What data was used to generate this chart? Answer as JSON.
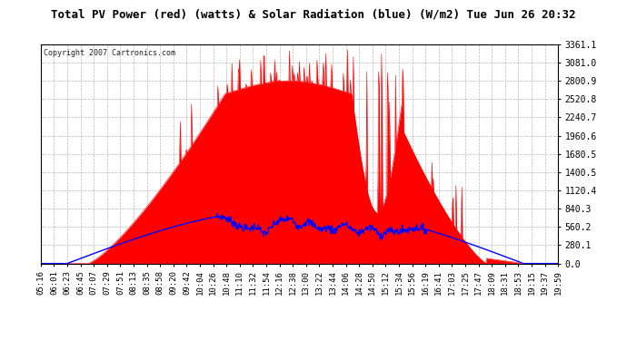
{
  "title": "Total PV Power (red) (watts) & Solar Radiation (blue) (W/m2) Tue Jun 26 20:32",
  "copyright": "Copyright 2007 Cartronics.com",
  "yticks": [
    0.0,
    280.1,
    560.2,
    840.3,
    1120.4,
    1400.5,
    1680.5,
    1960.6,
    2240.7,
    2520.8,
    2800.9,
    3081.0,
    3361.1
  ],
  "ymax": 3361.1,
  "ymin": 0.0,
  "bg_color": "#ffffff",
  "plot_bg": "#ffffff",
  "grid_color": "#888888",
  "red_color": "#ff0000",
  "blue_color": "#0000ff",
  "xtick_labels": [
    "05:16",
    "06:01",
    "06:23",
    "06:45",
    "07:07",
    "07:29",
    "07:51",
    "08:13",
    "08:35",
    "08:58",
    "09:20",
    "09:42",
    "10:04",
    "10:26",
    "10:48",
    "11:10",
    "11:32",
    "11:54",
    "12:16",
    "12:38",
    "13:00",
    "13:22",
    "13:44",
    "14:06",
    "14:28",
    "14:50",
    "15:12",
    "15:34",
    "15:56",
    "16:19",
    "16:41",
    "17:03",
    "17:25",
    "17:47",
    "18:09",
    "18:31",
    "18:53",
    "19:15",
    "19:37",
    "19:59"
  ],
  "title_fontsize": 9,
  "tick_fontsize": 6.5,
  "ytick_fontsize": 7
}
